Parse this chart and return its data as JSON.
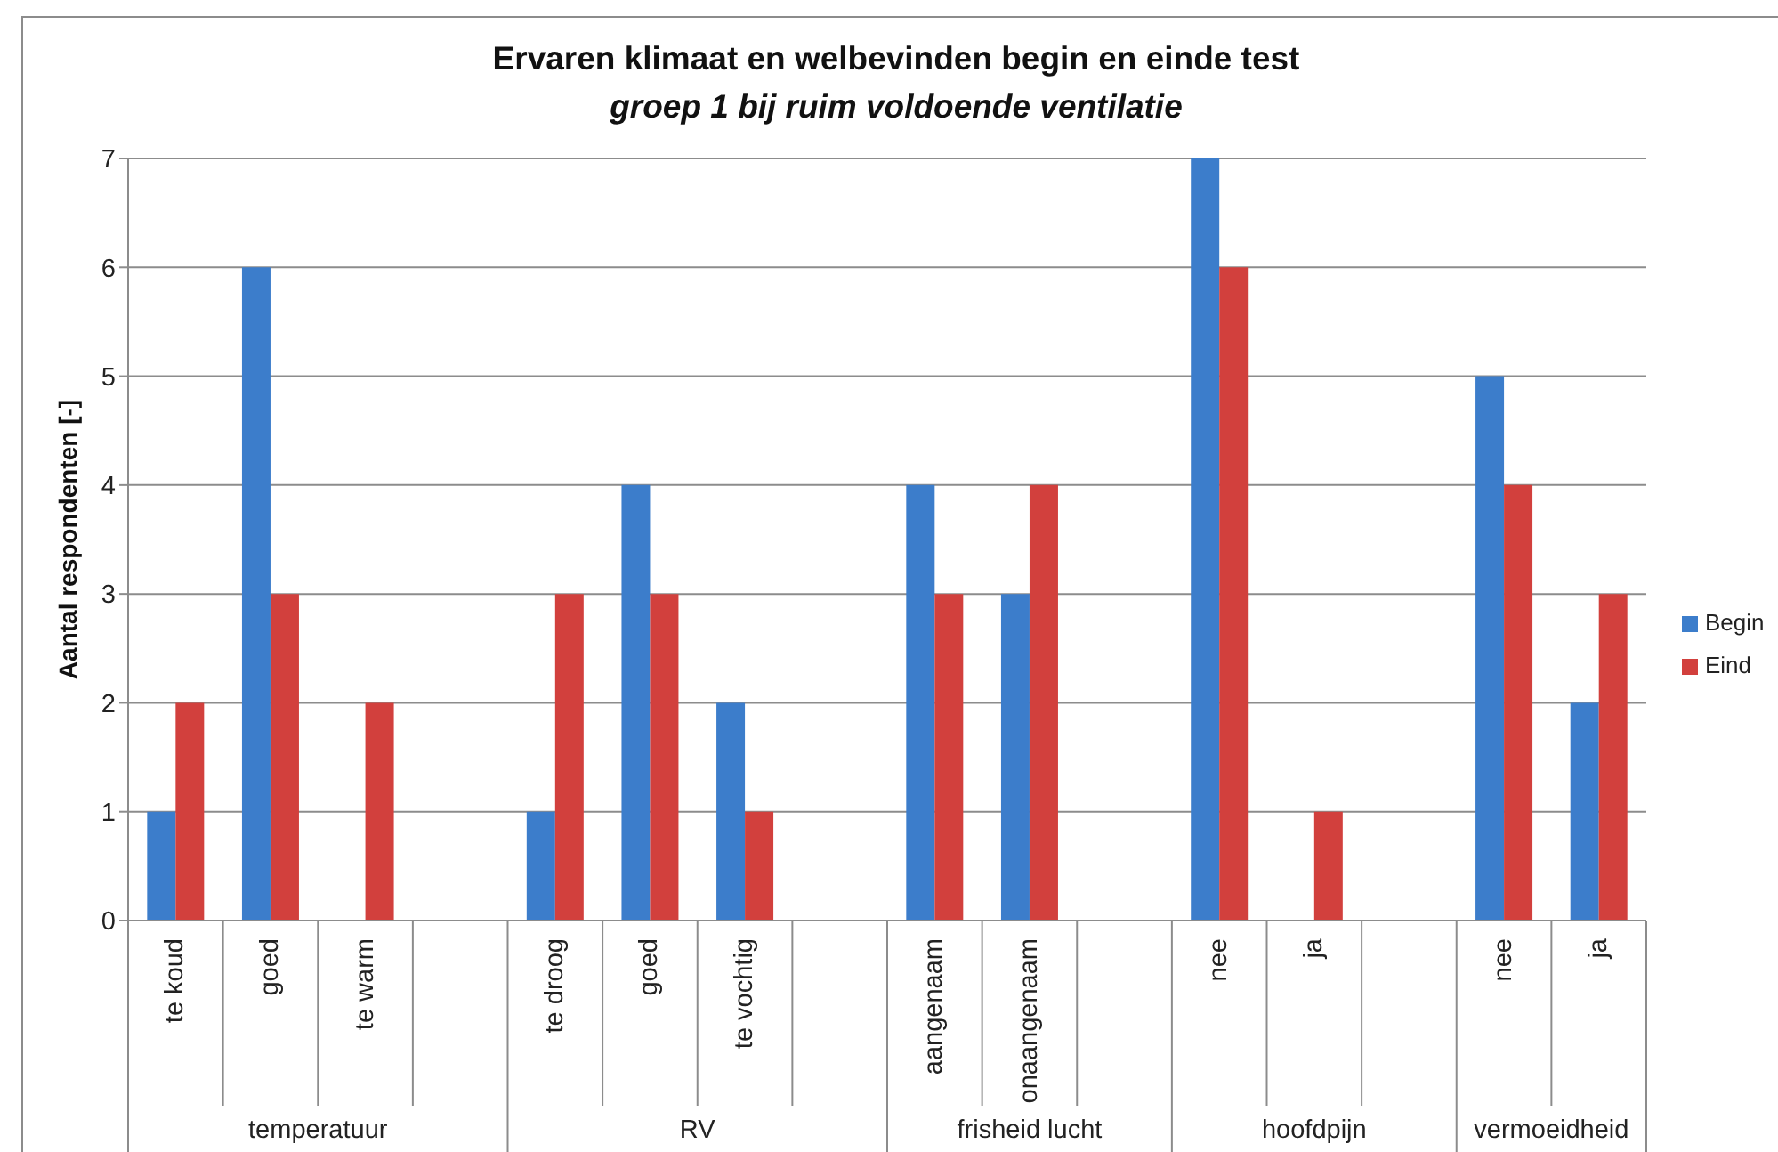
{
  "chart_data": {
    "type": "bar",
    "title": "Ervaren klimaat en welbevinden begin en einde test",
    "subtitle": "groep 1 bij ruim voldoende ventilatie",
    "ylabel": "Aantal respondenten [-]",
    "categories": [
      "te koud",
      "goed",
      "te warm",
      null,
      "te droog",
      "goed",
      "te vochtig",
      null,
      "aangenaam",
      "onaangenaam",
      null,
      "nee",
      "ja",
      null,
      "nee",
      "ja"
    ],
    "series": [
      {
        "name": "Begin",
        "color": "#3c7dcb",
        "values": [
          1,
          6,
          0,
          null,
          1,
          4,
          2,
          null,
          4,
          3,
          null,
          7,
          0,
          null,
          5,
          2
        ]
      },
      {
        "name": "Eind",
        "color": "#d2403d",
        "values": [
          2,
          3,
          2,
          null,
          3,
          3,
          1,
          null,
          3,
          4,
          null,
          6,
          1,
          null,
          4,
          3
        ]
      }
    ],
    "ylim": [
      0,
      7
    ],
    "yticks": [
      0,
      1,
      2,
      3,
      4,
      5,
      6,
      7
    ],
    "grid": "y",
    "legend": "right",
    "annotations": [
      "temperatuur",
      "RV",
      "frisheid lucht",
      "hoofdpijn",
      "vermoeidheid"
    ]
  }
}
